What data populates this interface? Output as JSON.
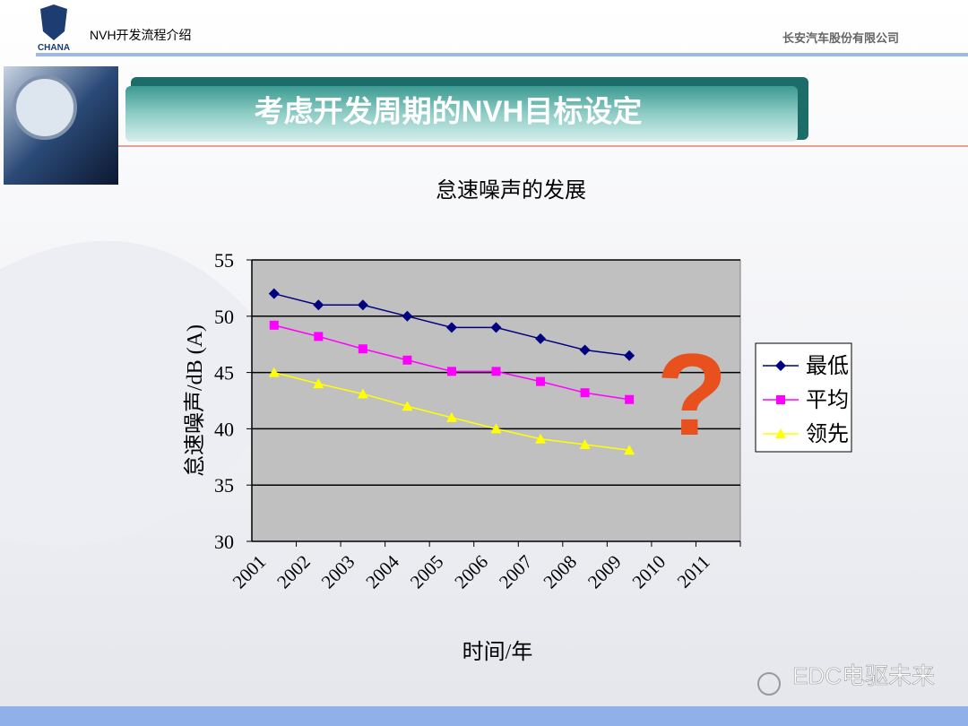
{
  "header": {
    "logo": "CHANA",
    "left": "NVH开发流程介绍",
    "right": "长安汽车股份有限公司",
    "banner": "考虑开发周期的NVH目标设定"
  },
  "watermark": "EDC电驱未来",
  "chart_data": {
    "type": "line",
    "title": "怠速噪声的发展",
    "y_label": "怠速噪声/dB (A)",
    "x_label": "时间/年",
    "annotation": "?",
    "categories": [
      "2001",
      "2002",
      "2003",
      "2004",
      "2005",
      "2006",
      "2007",
      "2008",
      "2009",
      "2010",
      "2011"
    ],
    "series": [
      {
        "name": "最低",
        "color": "#000080",
        "marker": "diamond",
        "values": [
          52,
          51,
          51,
          50,
          49,
          49,
          48,
          47,
          46.5,
          null,
          null
        ]
      },
      {
        "name": "平均",
        "color": "#ff00ff",
        "marker": "square",
        "values": [
          49.2,
          48.2,
          47.1,
          46.1,
          45.1,
          45.1,
          44.2,
          43.2,
          42.6,
          null,
          null
        ]
      },
      {
        "name": "领先",
        "color": "#ffff00",
        "marker": "triangle",
        "values": [
          45,
          44,
          43.1,
          42,
          41,
          40,
          39.1,
          38.6,
          38.1,
          null,
          null
        ]
      }
    ],
    "ylim": [
      30,
      55
    ],
    "yticks": [
      30,
      35,
      40,
      45,
      50,
      55
    ],
    "grid": true,
    "legend": "right"
  }
}
